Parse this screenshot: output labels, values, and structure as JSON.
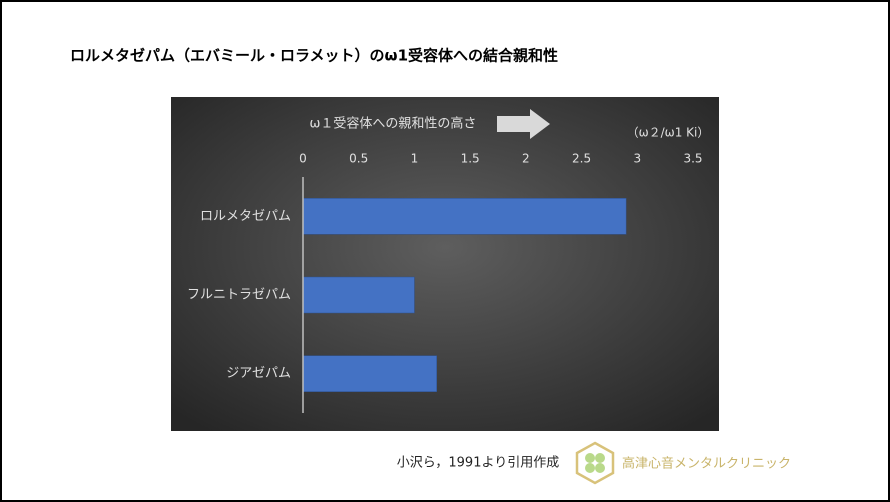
{
  "chart_data": {
    "type": "bar",
    "orientation": "horizontal",
    "title": "ロルメタゼパム（エバミール・ロラメット）のω1受容体への結合親和性",
    "annotation": "ω１受容体への親和性の高さ",
    "unit_label": "（ω２/ω1 Ki）",
    "categories": [
      "ロルメタゼパム",
      "フルニトラゼパム",
      "ジアゼパム"
    ],
    "values": [
      2.9,
      1.0,
      1.2
    ],
    "color": "#4472c4",
    "xlim": [
      0,
      3.5
    ],
    "xticks": [
      0,
      0.5,
      1,
      1.5,
      2,
      2.5,
      3,
      3.5
    ],
    "grid": false
  },
  "source": "小沢ら，1991より引用作成",
  "logo_text": "高津心音メンタルクリニック"
}
